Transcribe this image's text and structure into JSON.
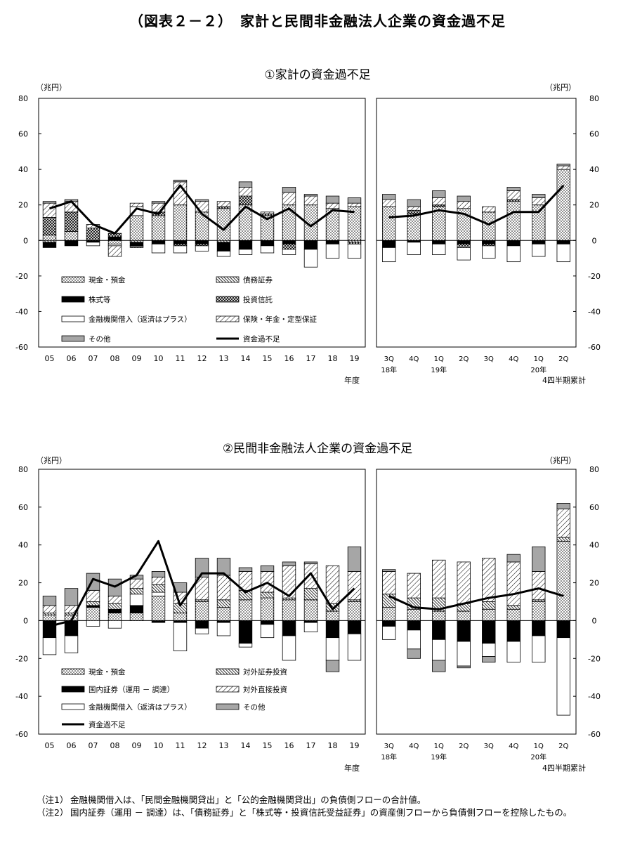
{
  "title": "（図表２－２）　家計と民間非金融法人企業の資金過不足",
  "chart_data": [
    {
      "type": "bar",
      "stacked": true,
      "title": "①家計の資金過不足",
      "unit_left": "（兆円）",
      "unit_right": "（兆円）",
      "ylim": [
        -60,
        80
      ],
      "yticks": [
        "80",
        "60",
        "40",
        "20",
        "0",
        "-20",
        "-40",
        "-60"
      ],
      "xlabel_left": "年度",
      "xlabel_right": "4四半期累計",
      "categories_left": [
        "05",
        "06",
        "07",
        "08",
        "09",
        "10",
        "11",
        "12",
        "13",
        "14",
        "15",
        "16",
        "17",
        "18",
        "19"
      ],
      "categories_right": [
        "3Q",
        "4Q",
        "1Q",
        "2Q",
        "3Q",
        "4Q",
        "1Q",
        "2Q"
      ],
      "year_labels_right": [
        "18年",
        "",
        "19年",
        "",
        "",
        "",
        "20年",
        ""
      ],
      "series": [
        {
          "name": "現金・預金",
          "pattern": "dots",
          "values": [
            3,
            5,
            0,
            -2,
            14,
            14,
            20,
            16,
            18,
            20,
            14,
            20,
            20,
            18,
            19,
            19,
            15,
            19,
            18,
            16,
            22,
            20,
            40
          ]
        },
        {
          "name": "債務証券",
          "pattern": "diag-dense",
          "values": [
            -1,
            0,
            0,
            0,
            -1,
            0,
            0,
            0,
            -1,
            0,
            0,
            0,
            0,
            0,
            -1,
            0,
            0,
            0,
            0,
            0,
            0,
            0,
            0
          ]
        },
        {
          "name": "株式等",
          "pattern": "black",
          "values": [
            -3,
            -3,
            -1,
            2,
            -2,
            -2,
            -2,
            -2,
            -5,
            -5,
            -3,
            -2,
            -5,
            -2,
            0,
            -4,
            -1,
            -2,
            -2,
            -2,
            -3,
            -2,
            -2
          ]
        },
        {
          "name": "投資信託",
          "pattern": "cross",
          "values": [
            10,
            11,
            7,
            2,
            -1,
            2,
            -1,
            -1,
            1,
            5,
            1,
            -3,
            0,
            0,
            -1,
            0,
            2,
            1,
            -2,
            -1,
            1,
            0,
            0
          ]
        },
        {
          "name": "金融機関借入（返済はプラス）",
          "pattern": "white",
          "values": [
            0,
            0,
            -2,
            -1,
            5,
            -5,
            -4,
            -3,
            -3,
            -3,
            -4,
            -3,
            -10,
            -8,
            -8,
            -8,
            -7,
            -6,
            -7,
            -7,
            -9,
            -7,
            -10
          ]
        },
        {
          "name": "保険・年金・定型保証",
          "pattern": "diag",
          "values": [
            8,
            6,
            2,
            -6,
            2,
            5,
            13,
            6,
            3,
            5,
            1,
            7,
            5,
            3,
            2,
            4,
            2,
            4,
            4,
            3,
            5,
            4,
            2
          ]
        },
        {
          "name": "その他",
          "pattern": "gray",
          "values": [
            1,
            1,
            0,
            0,
            0,
            1,
            1,
            1,
            0,
            3,
            0,
            3,
            1,
            4,
            3,
            3,
            4,
            4,
            3,
            0,
            2,
            2,
            1
          ]
        }
      ],
      "line": {
        "name": "資金過不足",
        "values": [
          18,
          22,
          9,
          4,
          18,
          15,
          31,
          15,
          6,
          19,
          12,
          18,
          8,
          17,
          16,
          13,
          14,
          17,
          15,
          9,
          16,
          16,
          31
        ]
      }
    },
    {
      "type": "bar",
      "stacked": true,
      "title": "②民間非金融法人企業の資金過不足",
      "unit_left": "（兆円）",
      "unit_right": "（兆円）",
      "ylim": [
        -60,
        80
      ],
      "yticks": [
        "80",
        "60",
        "40",
        "20",
        "0",
        "-20",
        "-40",
        "-60"
      ],
      "xlabel_left": "年度",
      "xlabel_right": "4四半期累計",
      "categories_left": [
        "05",
        "06",
        "07",
        "08",
        "09",
        "10",
        "11",
        "12",
        "13",
        "14",
        "15",
        "16",
        "17",
        "18",
        "19"
      ],
      "categories_right": [
        "3Q",
        "4Q",
        "1Q",
        "2Q",
        "3Q",
        "4Q",
        "1Q",
        "2Q"
      ],
      "year_labels_right": [
        "18年",
        "",
        "19年",
        "",
        "",
        "",
        "20年",
        ""
      ],
      "series": [
        {
          "name": "現金・預金",
          "pattern": "dots",
          "values": [
            3,
            3,
            7,
            4,
            4,
            13,
            4,
            10,
            7,
            11,
            12,
            11,
            11,
            5,
            10,
            7,
            6,
            5,
            5,
            6,
            6,
            10,
            42
          ]
        },
        {
          "name": "国内証券（運用 － 調達）",
          "pattern": "black",
          "values": [
            -9,
            -8,
            1,
            2,
            4,
            -1,
            -1,
            -4,
            -1,
            -12,
            -2,
            -8,
            -1,
            -9,
            -7,
            -3,
            -5,
            -10,
            -11,
            -12,
            -11,
            -8,
            -9
          ]
        },
        {
          "name": "金融機関借入（返済はプラス）",
          "pattern": "white",
          "values": [
            -9,
            -9,
            -3,
            -4,
            6,
            2,
            -15,
            -3,
            -7,
            -2,
            -7,
            -13,
            -5,
            -12,
            -14,
            -7,
            -10,
            -11,
            -13,
            -7,
            -11,
            -14,
            -41
          ]
        },
        {
          "name": "対外証券投資",
          "pattern": "diag-dense",
          "values": [
            1,
            1,
            2,
            3,
            3,
            4,
            5,
            1,
            4,
            5,
            3,
            1,
            6,
            4,
            1,
            7,
            6,
            7,
            4,
            4,
            2,
            1,
            2
          ]
        },
        {
          "name": "対外直接投資",
          "pattern": "diag",
          "values": [
            4,
            4,
            6,
            4,
            5,
            4,
            6,
            12,
            13,
            10,
            11,
            17,
            13,
            20,
            15,
            12,
            13,
            20,
            22,
            23,
            23,
            15,
            15
          ]
        },
        {
          "name": "その他",
          "pattern": "gray",
          "values": [
            5,
            9,
            9,
            9,
            2,
            3,
            5,
            10,
            9,
            2,
            3,
            2,
            1,
            -6,
            13,
            1,
            -5,
            -6,
            -1,
            -3,
            4,
            13,
            3
          ]
        }
      ],
      "line": {
        "name": "資金過不足",
        "values": [
          -3,
          0,
          22,
          18,
          24,
          42,
          8,
          25,
          25,
          15,
          20,
          13,
          25,
          6,
          17,
          13,
          7,
          6,
          9,
          12,
          14,
          17,
          13
        ]
      }
    }
  ],
  "notes": [
    {
      "label": "（注1）",
      "text": "金融機関借入は、「民間金融機関貸出」と「公的金融機関貸出」の負債側フローの合計値。"
    },
    {
      "label": "（注2）",
      "text": "国内証券（運用 － 調達）は、「債務証券」と「株式等・投資信託受益証券」の資産側フローから負債側フローを控除したもの。"
    }
  ]
}
